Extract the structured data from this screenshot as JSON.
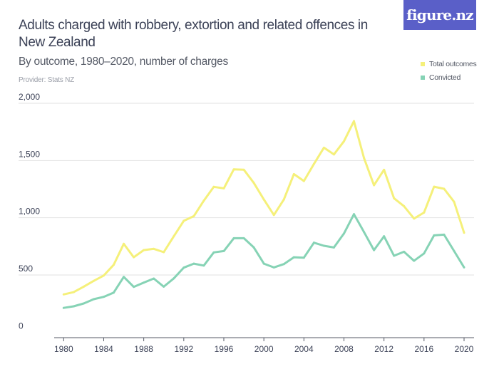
{
  "header": {
    "title": "Adults charged with robbery, extortion and related offences in New Zealand",
    "subtitle": "By outcome, 1980–2020, number of charges",
    "provider": "Provider: Stats NZ",
    "logo": "figure.nz"
  },
  "colors": {
    "total": "#f5f07a",
    "convicted": "#86d3b5",
    "logo_bg": "#5a5fc8",
    "grid": "#e2e2e2"
  },
  "chart_data": {
    "type": "line",
    "title": "Adults charged with robbery, extortion and related offences in New Zealand",
    "subtitle": "By outcome, 1980–2020, number of charges",
    "xlabel": "",
    "ylabel": "",
    "ylim": [
      0,
      2000
    ],
    "xlim": [
      1980,
      2020
    ],
    "grid": true,
    "legend_position": "top-right",
    "y_ticks": [
      "0",
      "500",
      "1,000",
      "1,500",
      "2,000"
    ],
    "y_tick_values": [
      0,
      500,
      1000,
      1500,
      2000
    ],
    "x_ticks": [
      "1980",
      "1984",
      "1988",
      "1992",
      "1996",
      "2000",
      "2004",
      "2008",
      "2012",
      "2016",
      "2020"
    ],
    "x": [
      1980,
      1981,
      1982,
      1983,
      1984,
      1985,
      1986,
      1987,
      1988,
      1989,
      1990,
      1991,
      1992,
      1993,
      1994,
      1995,
      1996,
      1997,
      1998,
      1999,
      2000,
      2001,
      2002,
      2003,
      2004,
      2005,
      2006,
      2007,
      2008,
      2009,
      2010,
      2011,
      2012,
      2013,
      2014,
      2015,
      2016,
      2017,
      2018,
      2019,
      2020
    ],
    "series": [
      {
        "name": "Total outcomes",
        "color": "#f5f07a",
        "values": [
          330,
          350,
          398,
          448,
          495,
          589,
          772,
          655,
          717,
          728,
          699,
          838,
          973,
          1014,
          1149,
          1270,
          1257,
          1423,
          1419,
          1304,
          1159,
          1024,
          1159,
          1381,
          1321,
          1470,
          1612,
          1553,
          1668,
          1844,
          1522,
          1284,
          1419,
          1170,
          1101,
          993,
          1045,
          1271,
          1253,
          1139,
          869
        ]
      },
      {
        "name": "Convicted",
        "color": "#86d3b5",
        "values": [
          212,
          226,
          251,
          288,
          309,
          346,
          483,
          396,
          433,
          469,
          398,
          470,
          564,
          599,
          582,
          697,
          709,
          821,
          821,
          740,
          599,
          566,
          595,
          655,
          651,
          782,
          755,
          740,
          862,
          1031,
          875,
          717,
          838,
          668,
          703,
          624,
          688,
          846,
          852,
          709,
          566
        ]
      }
    ]
  }
}
